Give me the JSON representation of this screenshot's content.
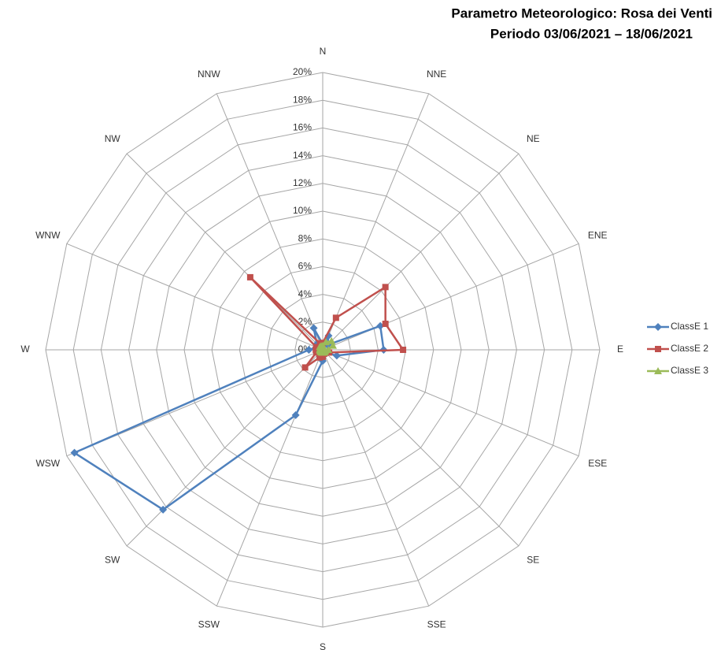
{
  "chart_data": {
    "type": "radar",
    "title": "Parametro Meteorologico: Rosa dei Venti",
    "subtitle": "Periodo 03/06/2021 – 18/06/2021",
    "categories": [
      "N",
      "NNE",
      "NE",
      "ENE",
      "E",
      "ESE",
      "SE",
      "SSE",
      "S",
      "SSW",
      "SW",
      "WSW",
      "W",
      "WNW",
      "NW",
      "NNW"
    ],
    "series": [
      {
        "name": "ClassE 1",
        "color": "#4f81bd",
        "marker": "diamond",
        "values": [
          0.4,
          1.1,
          0.5,
          4.5,
          4.4,
          1.1,
          0.3,
          0.3,
          0.8,
          5.1,
          16.3,
          19.4,
          1.0,
          0.5,
          0.6,
          1.7
        ]
      },
      {
        "name": "ClassE 2",
        "color": "#c0504d",
        "marker": "square",
        "values": [
          0.5,
          2.5,
          6.4,
          4.9,
          5.8,
          0.5,
          0.3,
          0.3,
          0.5,
          0.6,
          1.8,
          0.5,
          0.5,
          0.5,
          7.4,
          0.5
        ]
      },
      {
        "name": "ClassE 3",
        "color": "#9bbb59",
        "marker": "triangle",
        "values": [
          0.3,
          0.6,
          0.9,
          0.8,
          0.4,
          0.2,
          0.2,
          0.2,
          0.2,
          0.2,
          0.2,
          0.2,
          0.2,
          0.2,
          0.3,
          0.3
        ]
      }
    ],
    "ylim": [
      0,
      20
    ],
    "yticks": [
      {
        "value": 0,
        "label": "0%"
      },
      {
        "value": 2,
        "label": "2%"
      },
      {
        "value": 4,
        "label": "4%"
      },
      {
        "value": 6,
        "label": "6%"
      },
      {
        "value": 8,
        "label": "8%"
      },
      {
        "value": 10,
        "label": "10%"
      },
      {
        "value": 12,
        "label": "12%"
      },
      {
        "value": 14,
        "label": "14%"
      },
      {
        "value": 16,
        "label": "16%"
      },
      {
        "value": 18,
        "label": "18%"
      },
      {
        "value": 20,
        "label": "20%"
      }
    ],
    "grid": true,
    "legend": "right"
  }
}
